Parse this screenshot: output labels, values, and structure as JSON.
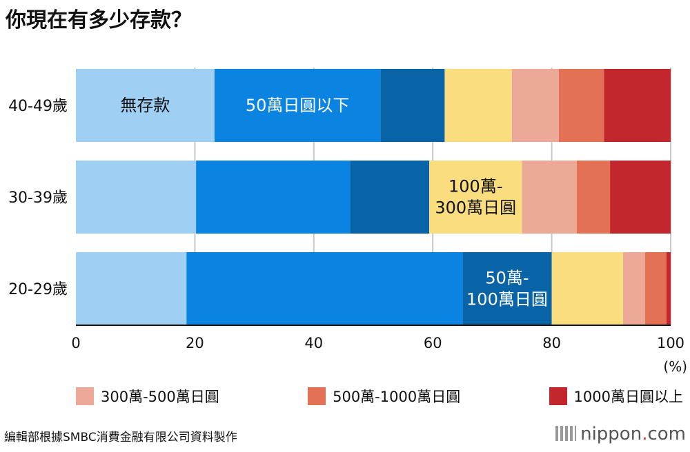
{
  "title": "你現在有多少存款？",
  "chart_data": {
    "type": "bar",
    "orientation": "horizontal",
    "stacked": true,
    "unit": "(%)",
    "xlim": [
      0,
      100
    ],
    "xticks": [
      0,
      20,
      40,
      60,
      80,
      100
    ],
    "categories": [
      "40-49歲",
      "30-39歲",
      "20-29歲"
    ],
    "series": [
      {
        "name": "無存款",
        "color": "#9fcff3",
        "values": [
          23.3,
          20.2,
          18.6
        ]
      },
      {
        "name": "50萬日圓以下",
        "color": "#0a84e0",
        "values": [
          27.9,
          25.9,
          46.4
        ]
      },
      {
        "name": "50萬-100萬日圓",
        "color": "#0864a6",
        "values": [
          10.8,
          13.3,
          15.0
        ]
      },
      {
        "name": "100萬-300萬日圓",
        "color": "#f9dd7e",
        "values": [
          11.3,
          15.6,
          12.0
        ]
      },
      {
        "name": "300萬-500萬日圓",
        "color": "#eca997",
        "values": [
          7.9,
          9.2,
          3.7
        ]
      },
      {
        "name": "500萬-1000萬日圓",
        "color": "#e27155",
        "values": [
          7.6,
          5.6,
          3.6
        ]
      },
      {
        "name": "1000萬日圓以上",
        "color": "#c3272e",
        "values": [
          11.2,
          10.2,
          0.7
        ]
      }
    ],
    "annotations": [
      {
        "category": "40-49歲",
        "series": 0,
        "lines": [
          "無存款"
        ],
        "color": "#111111"
      },
      {
        "category": "40-49歲",
        "series": 1,
        "lines": [
          "50萬日圓以下"
        ],
        "color": "#ffffff"
      },
      {
        "category": "30-39歲",
        "series": 3,
        "lines": [
          "100萬-",
          "300萬日圓"
        ],
        "color": "#111111"
      },
      {
        "category": "20-29歲",
        "series": 2,
        "lines": [
          "50萬-",
          "100萬日圓"
        ],
        "color": "#ffffff"
      }
    ]
  },
  "legend": [
    {
      "label": "300萬-500萬日圓",
      "color": "#eca997"
    },
    {
      "label": "500萬-1000萬日圓",
      "color": "#e27155"
    },
    {
      "label": "1000萬日圓以上",
      "color": "#c3272e"
    }
  ],
  "source": "編輯部根據SMBC消費金融有限公司資料製作",
  "brand": {
    "name": "nippon",
    "dot": ".",
    "suffix": "com"
  }
}
